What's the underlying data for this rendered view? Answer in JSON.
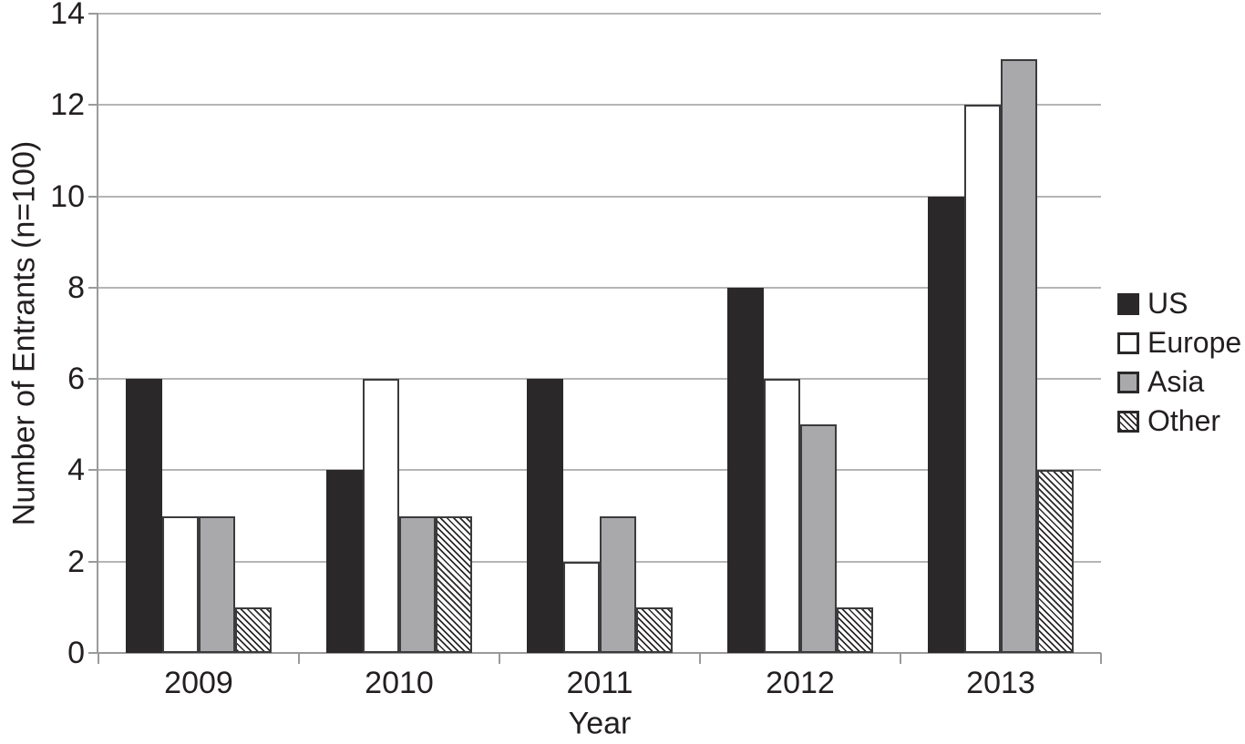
{
  "chart_data": {
    "type": "bar",
    "title": "",
    "xlabel": "Year",
    "ylabel": "Number of Entrants (n=100)",
    "categories": [
      "2009",
      "2010",
      "2011",
      "2012",
      "2013"
    ],
    "series": [
      {
        "name": "US",
        "values": [
          6,
          4,
          6,
          8,
          10
        ],
        "fill": "#2b2829",
        "pattern": "solid",
        "outlined": false
      },
      {
        "name": "Europe",
        "values": [
          3,
          6,
          2,
          6,
          12
        ],
        "fill": "#ffffff",
        "pattern": "solid",
        "outlined": true
      },
      {
        "name": "Asia",
        "values": [
          3,
          3,
          3,
          5,
          13
        ],
        "fill": "#a9a9ab",
        "pattern": "solid",
        "outlined": true
      },
      {
        "name": "Other",
        "values": [
          1,
          3,
          1,
          1,
          4
        ],
        "fill": "#ffffff",
        "pattern": "diagonal-hatch",
        "outlined": true
      }
    ],
    "ylim": [
      0,
      14
    ],
    "ytick_step": 2,
    "y_ticks": [
      "0",
      "2",
      "4",
      "6",
      "8",
      "10",
      "12",
      "14"
    ],
    "grid": true,
    "legend_position": "right",
    "colors": {
      "text": "#231f20",
      "gridline": "#b5b5b5",
      "axis": "#9a9a9a",
      "bar_border": "#3b3a3c"
    }
  }
}
